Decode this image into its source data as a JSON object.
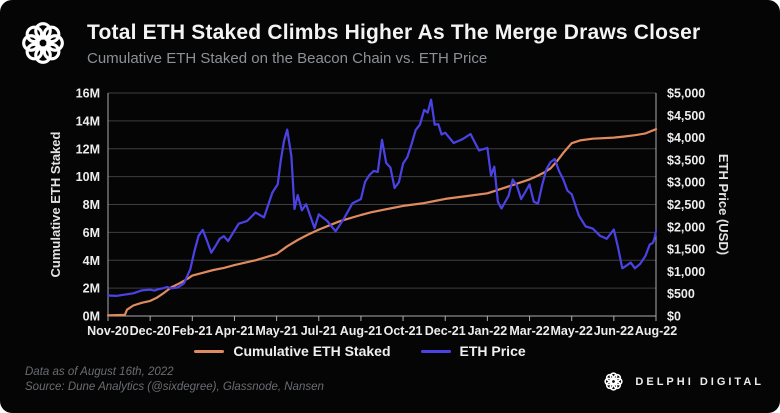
{
  "header": {
    "title": "Total ETH Staked Climbs Higher As The Merge Draws Closer",
    "subtitle": "Cumulative ETH Staked on the Beacon Chain vs. ETH Price"
  },
  "colors": {
    "background": "#050505",
    "staked_line": "#e08a5f",
    "price_line": "#4b42e6",
    "gridline": "#3c3f42",
    "axis_border": "#aaacae",
    "title_text": "#f4f4f4",
    "subtitle_text": "#8b9196",
    "tick_text": "#ededed",
    "footer_text": "#6a6d71"
  },
  "chart_data": {
    "type": "line",
    "title": "Total ETH Staked Climbs Higher As The Merge Draws Closer",
    "subtitle": "Cumulative ETH Staked on the Beacon Chain vs. ETH Price",
    "grid": "horizontal",
    "legend_position": "bottom-center",
    "x_tick_labels": [
      "Nov-20",
      "Dec-20",
      "Feb-21",
      "Apr-21",
      "May-21",
      "Jul-21",
      "Aug-21",
      "Oct-21",
      "Dec-21",
      "Jan-22",
      "Mar-22",
      "May-22",
      "Jun-22",
      "Aug-22"
    ],
    "x_tick_months": [
      0,
      1,
      3,
      5,
      6,
      8,
      9,
      11,
      13,
      14,
      16,
      18,
      19,
      21
    ],
    "y_left": {
      "label": "Cumulative ETH Staked",
      "min": 0,
      "max": 16,
      "step": 2,
      "unit": "M"
    },
    "y_right": {
      "label": "ETH Price (USD)",
      "min": 0,
      "max": 5000,
      "step": 500,
      "prefix": "$"
    },
    "series": [
      {
        "name": "Cumulative ETH Staked",
        "axis": "left",
        "color": "#e08a5f",
        "unit": "million ETH",
        "points": [
          [
            0,
            0.04
          ],
          [
            0.4,
            0.08
          ],
          [
            0.45,
            0.45
          ],
          [
            0.6,
            0.75
          ],
          [
            0.8,
            0.95
          ],
          [
            1,
            1.08
          ],
          [
            1.3,
            1.3
          ],
          [
            1.6,
            1.6
          ],
          [
            2,
            2.05
          ],
          [
            2.4,
            2.35
          ],
          [
            2.8,
            2.7
          ],
          [
            3,
            2.9
          ],
          [
            3.5,
            3.1
          ],
          [
            4,
            3.3
          ],
          [
            4.5,
            3.45
          ],
          [
            5,
            3.65
          ],
          [
            5.5,
            4.0
          ],
          [
            6,
            4.45
          ],
          [
            6.5,
            5.0
          ],
          [
            7,
            5.45
          ],
          [
            7.5,
            5.85
          ],
          [
            8,
            6.2
          ],
          [
            8.5,
            6.8
          ],
          [
            9,
            7.25
          ],
          [
            9.5,
            7.45
          ],
          [
            10,
            7.6
          ],
          [
            10.5,
            7.75
          ],
          [
            11,
            7.9
          ],
          [
            11.5,
            8.0
          ],
          [
            12,
            8.1
          ],
          [
            12.5,
            8.25
          ],
          [
            13,
            8.4
          ],
          [
            13.5,
            8.6
          ],
          [
            14,
            8.8
          ],
          [
            14.5,
            9.05
          ],
          [
            15,
            9.3
          ],
          [
            15.5,
            9.55
          ],
          [
            16,
            9.8
          ],
          [
            16.3,
            10.0
          ],
          [
            16.7,
            10.3
          ],
          [
            17,
            10.6
          ],
          [
            17.3,
            11.1
          ],
          [
            17.6,
            11.7
          ],
          [
            18,
            12.4
          ],
          [
            18.2,
            12.6
          ],
          [
            18.5,
            12.72
          ],
          [
            19,
            12.8
          ],
          [
            19.5,
            12.88
          ],
          [
            20,
            12.97
          ],
          [
            20.5,
            13.1
          ],
          [
            21,
            13.4
          ]
        ]
      },
      {
        "name": "ETH Price",
        "axis": "right",
        "color": "#4b42e6",
        "unit": "USD",
        "points": [
          [
            0,
            460
          ],
          [
            0.2,
            450
          ],
          [
            0.4,
            480
          ],
          [
            0.6,
            510
          ],
          [
            0.8,
            575
          ],
          [
            1,
            590
          ],
          [
            1.2,
            570
          ],
          [
            1.4,
            600
          ],
          [
            1.6,
            620
          ],
          [
            1.8,
            650
          ],
          [
            2,
            620
          ],
          [
            2.3,
            640
          ],
          [
            2.6,
            730
          ],
          [
            2.9,
            1040
          ],
          [
            3.1,
            1450
          ],
          [
            3.3,
            1800
          ],
          [
            3.5,
            1930
          ],
          [
            3.7,
            1680
          ],
          [
            3.9,
            1420
          ],
          [
            4.1,
            1570
          ],
          [
            4.3,
            1730
          ],
          [
            4.5,
            1790
          ],
          [
            4.7,
            1680
          ],
          [
            4.9,
            1840
          ],
          [
            5.1,
            2070
          ],
          [
            5.3,
            2130
          ],
          [
            5.5,
            2320
          ],
          [
            5.7,
            2210
          ],
          [
            5.9,
            2770
          ],
          [
            6.05,
            2950
          ],
          [
            6.2,
            3490
          ],
          [
            6.35,
            3920
          ],
          [
            6.5,
            4180
          ],
          [
            6.7,
            3580
          ],
          [
            6.85,
            2400
          ],
          [
            7,
            2710
          ],
          [
            7.2,
            2370
          ],
          [
            7.4,
            2510
          ],
          [
            7.6,
            2240
          ],
          [
            7.8,
            1970
          ],
          [
            8,
            2280
          ],
          [
            8.2,
            2130
          ],
          [
            8.4,
            1900
          ],
          [
            8.6,
            2190
          ],
          [
            8.8,
            2530
          ],
          [
            9,
            2620
          ],
          [
            9.2,
            3010
          ],
          [
            9.4,
            3160
          ],
          [
            9.6,
            3250
          ],
          [
            9.8,
            3230
          ],
          [
            10,
            3950
          ],
          [
            10.2,
            3430
          ],
          [
            10.4,
            3330
          ],
          [
            10.6,
            2870
          ],
          [
            10.8,
            3000
          ],
          [
            11,
            3420
          ],
          [
            11.2,
            3560
          ],
          [
            11.4,
            3850
          ],
          [
            11.6,
            4170
          ],
          [
            11.8,
            4290
          ],
          [
            12,
            4620
          ],
          [
            12.17,
            4560
          ],
          [
            12.33,
            4850
          ],
          [
            12.5,
            4290
          ],
          [
            12.67,
            4300
          ],
          [
            12.83,
            4070
          ],
          [
            13,
            4110
          ],
          [
            13.2,
            3880
          ],
          [
            13.4,
            3960
          ],
          [
            13.6,
            4080
          ],
          [
            13.8,
            3710
          ],
          [
            14,
            3770
          ],
          [
            14.17,
            3150
          ],
          [
            14.33,
            3350
          ],
          [
            14.5,
            2560
          ],
          [
            14.67,
            2410
          ],
          [
            14.83,
            2550
          ],
          [
            15,
            2690
          ],
          [
            15.2,
            3060
          ],
          [
            15.4,
            2920
          ],
          [
            15.6,
            2620
          ],
          [
            15.8,
            2780
          ],
          [
            16,
            2950
          ],
          [
            16.2,
            2560
          ],
          [
            16.4,
            2520
          ],
          [
            16.6,
            2940
          ],
          [
            16.8,
            3290
          ],
          [
            17,
            3450
          ],
          [
            17.2,
            3520
          ],
          [
            17.4,
            3250
          ],
          [
            17.6,
            3060
          ],
          [
            17.8,
            2810
          ],
          [
            18,
            2730
          ],
          [
            18.17,
            2250
          ],
          [
            18.33,
            2010
          ],
          [
            18.5,
            1960
          ],
          [
            18.67,
            1800
          ],
          [
            18.83,
            1730
          ],
          [
            19,
            1940
          ],
          [
            19.2,
            1530
          ],
          [
            19.4,
            1070
          ],
          [
            19.6,
            1130
          ],
          [
            19.8,
            1200
          ],
          [
            20,
            1070
          ],
          [
            20.25,
            1170
          ],
          [
            20.5,
            1350
          ],
          [
            20.7,
            1600
          ],
          [
            20.85,
            1640
          ],
          [
            20.9,
            1700
          ],
          [
            20.95,
            1780
          ],
          [
            21,
            1900
          ]
        ]
      }
    ]
  },
  "legend": {
    "items": [
      {
        "label": "Cumulative ETH Staked",
        "color": "#e08a5f"
      },
      {
        "label": "ETH Price",
        "color": "#4b42e6"
      }
    ]
  },
  "footer": {
    "line1": "Data as of August 16th, 2022",
    "line2": "Source: Dune Analytics (@sixdegree), Glassnode, Nansen"
  },
  "brand": {
    "name": "DELPHI DIGITAL",
    "logo_icon": "delphi-knot-icon"
  }
}
